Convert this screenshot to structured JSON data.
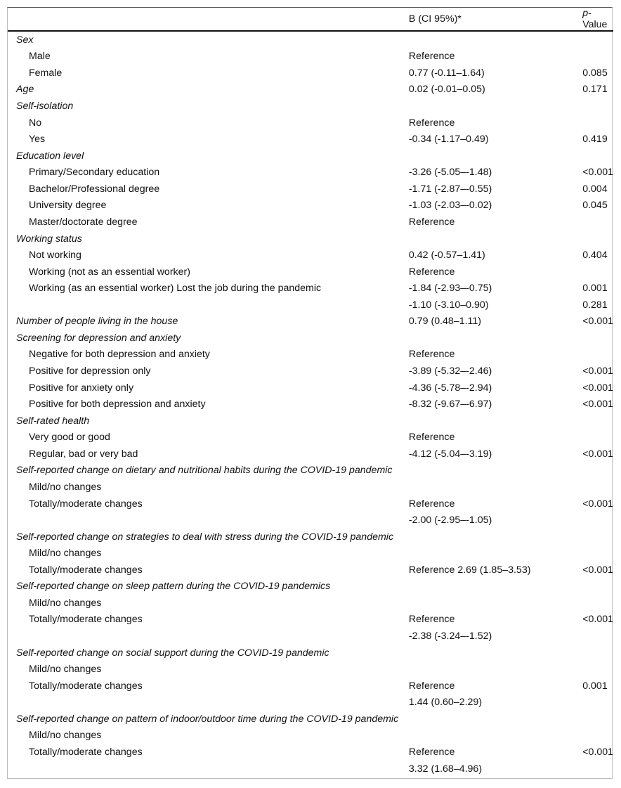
{
  "header": {
    "label": "",
    "b": "B (CI 95%)*",
    "p_italic": "p",
    "p_rest": "-Value"
  },
  "rows": [
    {
      "type": "cat",
      "label": "Sex",
      "b": "",
      "p": ""
    },
    {
      "type": "sub",
      "label": "Male",
      "b": "Reference",
      "p": ""
    },
    {
      "type": "sub",
      "label": "Female",
      "b": "0.77 (-0.11–1.64)",
      "p": "0.085"
    },
    {
      "type": "cat",
      "label": "Age",
      "b": "0.02 (-0.01–0.05)",
      "p": "0.171"
    },
    {
      "type": "cat",
      "label": "Self-isolation",
      "b": "",
      "p": ""
    },
    {
      "type": "sub",
      "label": "No",
      "b": "Reference",
      "p": ""
    },
    {
      "type": "sub",
      "label": "Yes",
      "b": "-0.34 (-1.17–0.49)",
      "p": "0.419"
    },
    {
      "type": "cat",
      "label": "Education level",
      "b": "",
      "p": ""
    },
    {
      "type": "sub",
      "label": "Primary/Secondary education",
      "b": "-3.26 (-5.05–-1.48)",
      "p": "<0.001"
    },
    {
      "type": "sub",
      "label": "Bachelor/Professional degree",
      "b": "-1.71 (-2.87–-0.55)",
      "p": "0.004"
    },
    {
      "type": "sub",
      "label": "University degree",
      "b": "-1.03 (-2.03–-0.02)",
      "p": "0.045"
    },
    {
      "type": "sub",
      "label": "Master/doctorate degree",
      "b": "Reference",
      "p": ""
    },
    {
      "type": "cat",
      "label": "Working status",
      "b": "",
      "p": ""
    },
    {
      "type": "sub",
      "label": "Not working",
      "b": "0.42 (-0.57–1.41)",
      "p": "0.404"
    },
    {
      "type": "sub",
      "label": "Working (not as an essential worker)",
      "b": "Reference",
      "p": ""
    },
    {
      "type": "sub",
      "label": "Working (as an essential worker) Lost the job during the pandemic",
      "b": "-1.84 (-2.93–-0.75)",
      "p": "0.001"
    },
    {
      "type": "sub",
      "label": "",
      "b": "-1.10 (-3.10–0.90)",
      "p": "0.281"
    },
    {
      "type": "cat",
      "label": "Number of people living in the house",
      "b": "0.79 (0.48–1.11)",
      "p": "<0.001"
    },
    {
      "type": "cat",
      "label": "Screening for depression and anxiety",
      "b": "",
      "p": ""
    },
    {
      "type": "sub",
      "label": "Negative for both depression and anxiety",
      "b": "Reference",
      "p": ""
    },
    {
      "type": "sub",
      "label": "Positive for depression only",
      "b": "-3.89 (-5.32–-2.46)",
      "p": "<0.001"
    },
    {
      "type": "sub",
      "label": "Positive for anxiety only",
      "b": "-4.36 (-5.78–-2.94)",
      "p": "<0.001"
    },
    {
      "type": "sub",
      "label": "Positive for both depression and anxiety",
      "b": "-8.32 (-9.67–-6.97)",
      "p": "<0.001"
    },
    {
      "type": "cat",
      "label": "Self-rated health",
      "b": "",
      "p": ""
    },
    {
      "type": "sub",
      "label": "Very good or good",
      "b": "Reference",
      "p": ""
    },
    {
      "type": "sub",
      "label": "Regular, bad or very bad",
      "b": "-4.12 (-5.04–-3.19)",
      "p": "<0.001"
    },
    {
      "type": "cat",
      "label": "Self-reported change on dietary and nutritional habits during the COVID-19 pandemic",
      "b": "",
      "p": ""
    },
    {
      "type": "sub",
      "label": "Mild/no changes",
      "b": "",
      "p": ""
    },
    {
      "type": "sub",
      "label": "Totally/moderate changes",
      "b": "Reference",
      "p": "<0.001"
    },
    {
      "type": "sub",
      "label": "",
      "b": "-2.00 (-2.95–-1.05)",
      "p": ""
    },
    {
      "type": "cat",
      "label": "Self-reported change on strategies to deal with stress during the COVID-19 pandemic",
      "b": "",
      "p": ""
    },
    {
      "type": "sub",
      "label": "Mild/no changes",
      "b": "",
      "p": ""
    },
    {
      "type": "sub",
      "label": "Totally/moderate changes",
      "b": "Reference 2.69 (1.85–3.53)",
      "p": "<0.001"
    },
    {
      "type": "cat",
      "label": "Self-reported change on sleep pattern during the COVID-19 pandemics",
      "b": "",
      "p": ""
    },
    {
      "type": "sub",
      "label": "Mild/no changes",
      "b": "",
      "p": ""
    },
    {
      "type": "sub",
      "label": "Totally/moderate changes",
      "b": "Reference",
      "p": "<0.001"
    },
    {
      "type": "sub",
      "label": "",
      "b": "-2.38 (-3.24–-1.52)",
      "p": ""
    },
    {
      "type": "cat",
      "label": "Self-reported change on social support during the COVID-19 pandemic",
      "b": "",
      "p": ""
    },
    {
      "type": "sub",
      "label": "Mild/no changes",
      "b": "",
      "p": ""
    },
    {
      "type": "sub",
      "label": "Totally/moderate changes",
      "b": "Reference",
      "p": "0.001"
    },
    {
      "type": "sub",
      "label": "",
      "b": "1.44 (0.60–2.29)",
      "p": ""
    },
    {
      "type": "cat",
      "label": "Self-reported change on pattern of indoor/outdoor time during the COVID-19 pandemic",
      "b": "",
      "p": ""
    },
    {
      "type": "sub",
      "label": "Mild/no changes",
      "b": "",
      "p": ""
    },
    {
      "type": "sub",
      "label": "Totally/moderate changes",
      "b": "Reference",
      "p": "<0.001"
    },
    {
      "type": "sub",
      "label": "",
      "b": "3.32 (1.68–4.96)",
      "p": ""
    }
  ]
}
